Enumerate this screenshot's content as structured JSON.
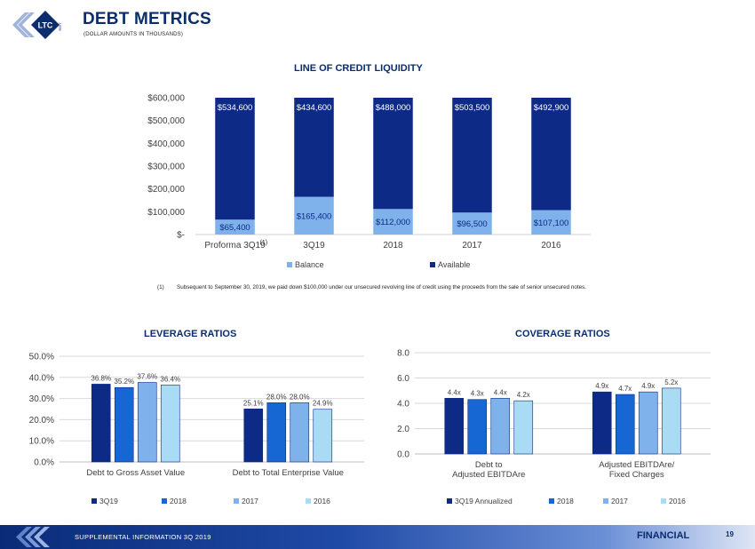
{
  "header": {
    "logo_text": "LTC",
    "logo_subtext": "REIT",
    "title": "DEBT METRICS",
    "subtitle": "(DOLLAR AMOUNTS IN THOUSANDS)"
  },
  "footnote": {
    "number": "(1)",
    "text": "Subsequent to September 30, 2019, we paid down $100,000 under our unsecured revolving line of credit using the proceeds from the sale of senior unsecured notes."
  },
  "footer": {
    "left_text": "SUPPLEMENTAL INFORMATION 3Q 2019",
    "section": "FINANCIAL",
    "page_number": "19"
  },
  "colors": {
    "dark_navy": "#0d2a87",
    "mid_blue": "#1667d3",
    "light_blue": "#7fb1ea",
    "pale_blue": "#a9dbf4",
    "title_blue": "#0b2d6e"
  },
  "chart_data": [
    {
      "id": "line-of-credit",
      "type": "bar",
      "stacked": true,
      "title": "LINE OF CREDIT LIQUIDITY",
      "categories": [
        "Proforma 3Q19",
        "3Q19",
        "2018",
        "2017",
        "2016"
      ],
      "category_notes": [
        "(1)",
        "",
        "",
        "",
        ""
      ],
      "series": [
        {
          "name": "Balance",
          "values": [
            65400,
            165400,
            112000,
            96500,
            107100
          ],
          "labels": [
            "$65,400",
            "$165,400",
            "$112,000",
            "$96,500",
            "$107,100"
          ],
          "color": "#7fb1ea"
        },
        {
          "name": "Available",
          "values": [
            534600,
            434600,
            488000,
            503500,
            492900
          ],
          "labels": [
            "$534,600",
            "$434,600",
            "$488,000",
            "$503,500",
            "$492,900"
          ],
          "color": "#0d2a87"
        }
      ],
      "yticks": [
        0,
        100000,
        200000,
        300000,
        400000,
        500000,
        600000
      ],
      "ytick_labels": [
        "$-",
        "$100,000",
        "$200,000",
        "$300,000",
        "$400,000",
        "$500,000",
        "$600,000"
      ],
      "ylim": [
        0,
        600000
      ],
      "legend": "bottom",
      "grid": false
    },
    {
      "id": "leverage",
      "type": "bar",
      "title": "LEVERAGE RATIOS",
      "categories": [
        "Debt to Gross Asset Value",
        "Debt to Total Enterprise Value"
      ],
      "series": [
        {
          "name": "3Q19",
          "values": [
            36.8,
            25.1
          ],
          "labels": [
            "36.8%",
            "25.1%"
          ],
          "color": "#0d2a87"
        },
        {
          "name": "2018",
          "values": [
            35.2,
            28.0
          ],
          "labels": [
            "35.2%",
            "28.0%"
          ],
          "color": "#1667d3"
        },
        {
          "name": "2017",
          "values": [
            37.6,
            28.0
          ],
          "labels": [
            "37.6%",
            "28.0%"
          ],
          "color": "#7fb1ea"
        },
        {
          "name": "2016",
          "values": [
            36.4,
            24.9
          ],
          "labels": [
            "36.4%",
            "24.9%"
          ],
          "color": "#a9dbf4"
        }
      ],
      "yticks": [
        0,
        10,
        20,
        30,
        40,
        50
      ],
      "ytick_labels": [
        "0.0%",
        "10.0%",
        "20.0%",
        "30.0%",
        "40.0%",
        "50.0%"
      ],
      "ylim": [
        0,
        50
      ],
      "legend": "bottom",
      "grid": true
    },
    {
      "id": "coverage",
      "type": "bar",
      "title": "COVERAGE RATIOS",
      "categories": [
        "Debt to\nAdjusted EBITDAre",
        "Adjusted EBITDAre/\nFixed Charges"
      ],
      "series": [
        {
          "name": "3Q19 Annualized",
          "values": [
            4.4,
            4.9
          ],
          "labels": [
            "4.4x",
            "4.9x"
          ],
          "color": "#0d2a87"
        },
        {
          "name": "2018",
          "values": [
            4.3,
            4.7
          ],
          "labels": [
            "4.3x",
            "4.7x"
          ],
          "color": "#1667d3"
        },
        {
          "name": "2017",
          "values": [
            4.4,
            4.9
          ],
          "labels": [
            "4.4x",
            "4.9x"
          ],
          "color": "#7fb1ea"
        },
        {
          "name": "2016",
          "values": [
            4.2,
            5.2
          ],
          "labels": [
            "4.2x",
            "5.2x"
          ],
          "color": "#a9dbf4"
        }
      ],
      "yticks": [
        0,
        2,
        4,
        6,
        8
      ],
      "ytick_labels": [
        "0.0",
        "2.0",
        "4.0",
        "6.0",
        "8.0"
      ],
      "ylim": [
        0,
        8
      ],
      "legend": "bottom",
      "grid": true
    }
  ]
}
